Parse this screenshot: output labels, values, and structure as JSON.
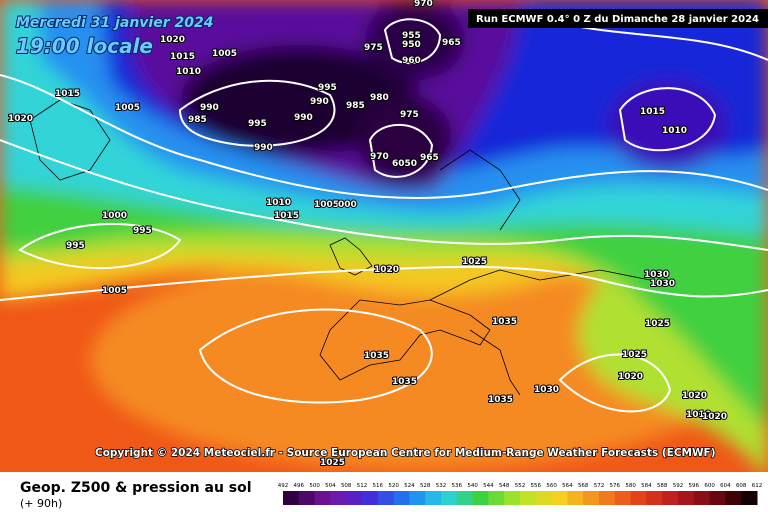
{
  "header": {
    "date": "Mercredi 31 janvier 2024",
    "time": "19:00 locale",
    "run": "Run ECMWF 0.4° 0 Z du Dimanche 28 janvier 2024"
  },
  "copyright": "Copyright © 2024 Meteociel.fr - Source European Centre for Medium-Range Weather Forecasts (ECMWF)",
  "footer": {
    "title": "Geop. Z500 & pression au sol",
    "lead": "(+ 90h)"
  },
  "colorbar": {
    "labels": [
      492,
      496,
      500,
      504,
      508,
      512,
      516,
      520,
      524,
      528,
      532,
      536,
      540,
      544,
      548,
      552,
      556,
      560,
      564,
      568,
      572,
      576,
      580,
      584,
      588,
      592,
      596,
      600,
      604,
      608,
      612
    ]
  },
  "isobar_labels": [
    "1020",
    "1015",
    "1010",
    "1005",
    "1015",
    "1020",
    "1005",
    "990",
    "985",
    "995",
    "990",
    "990",
    "995",
    "990",
    "985",
    "980",
    "975",
    "975",
    "955",
    "950",
    "960",
    "965",
    "970",
    "970",
    "965",
    "1015",
    "1010",
    "1010",
    "1015",
    "1005",
    "000",
    "1000",
    "995",
    "995",
    "1005",
    "1020",
    "1025",
    "1030",
    "1030",
    "1035",
    "1025",
    "1025",
    "1020",
    "1035",
    "1035",
    "1035",
    "1030",
    "1020",
    "1010",
    "1020",
    "1025",
    "6050"
  ]
}
